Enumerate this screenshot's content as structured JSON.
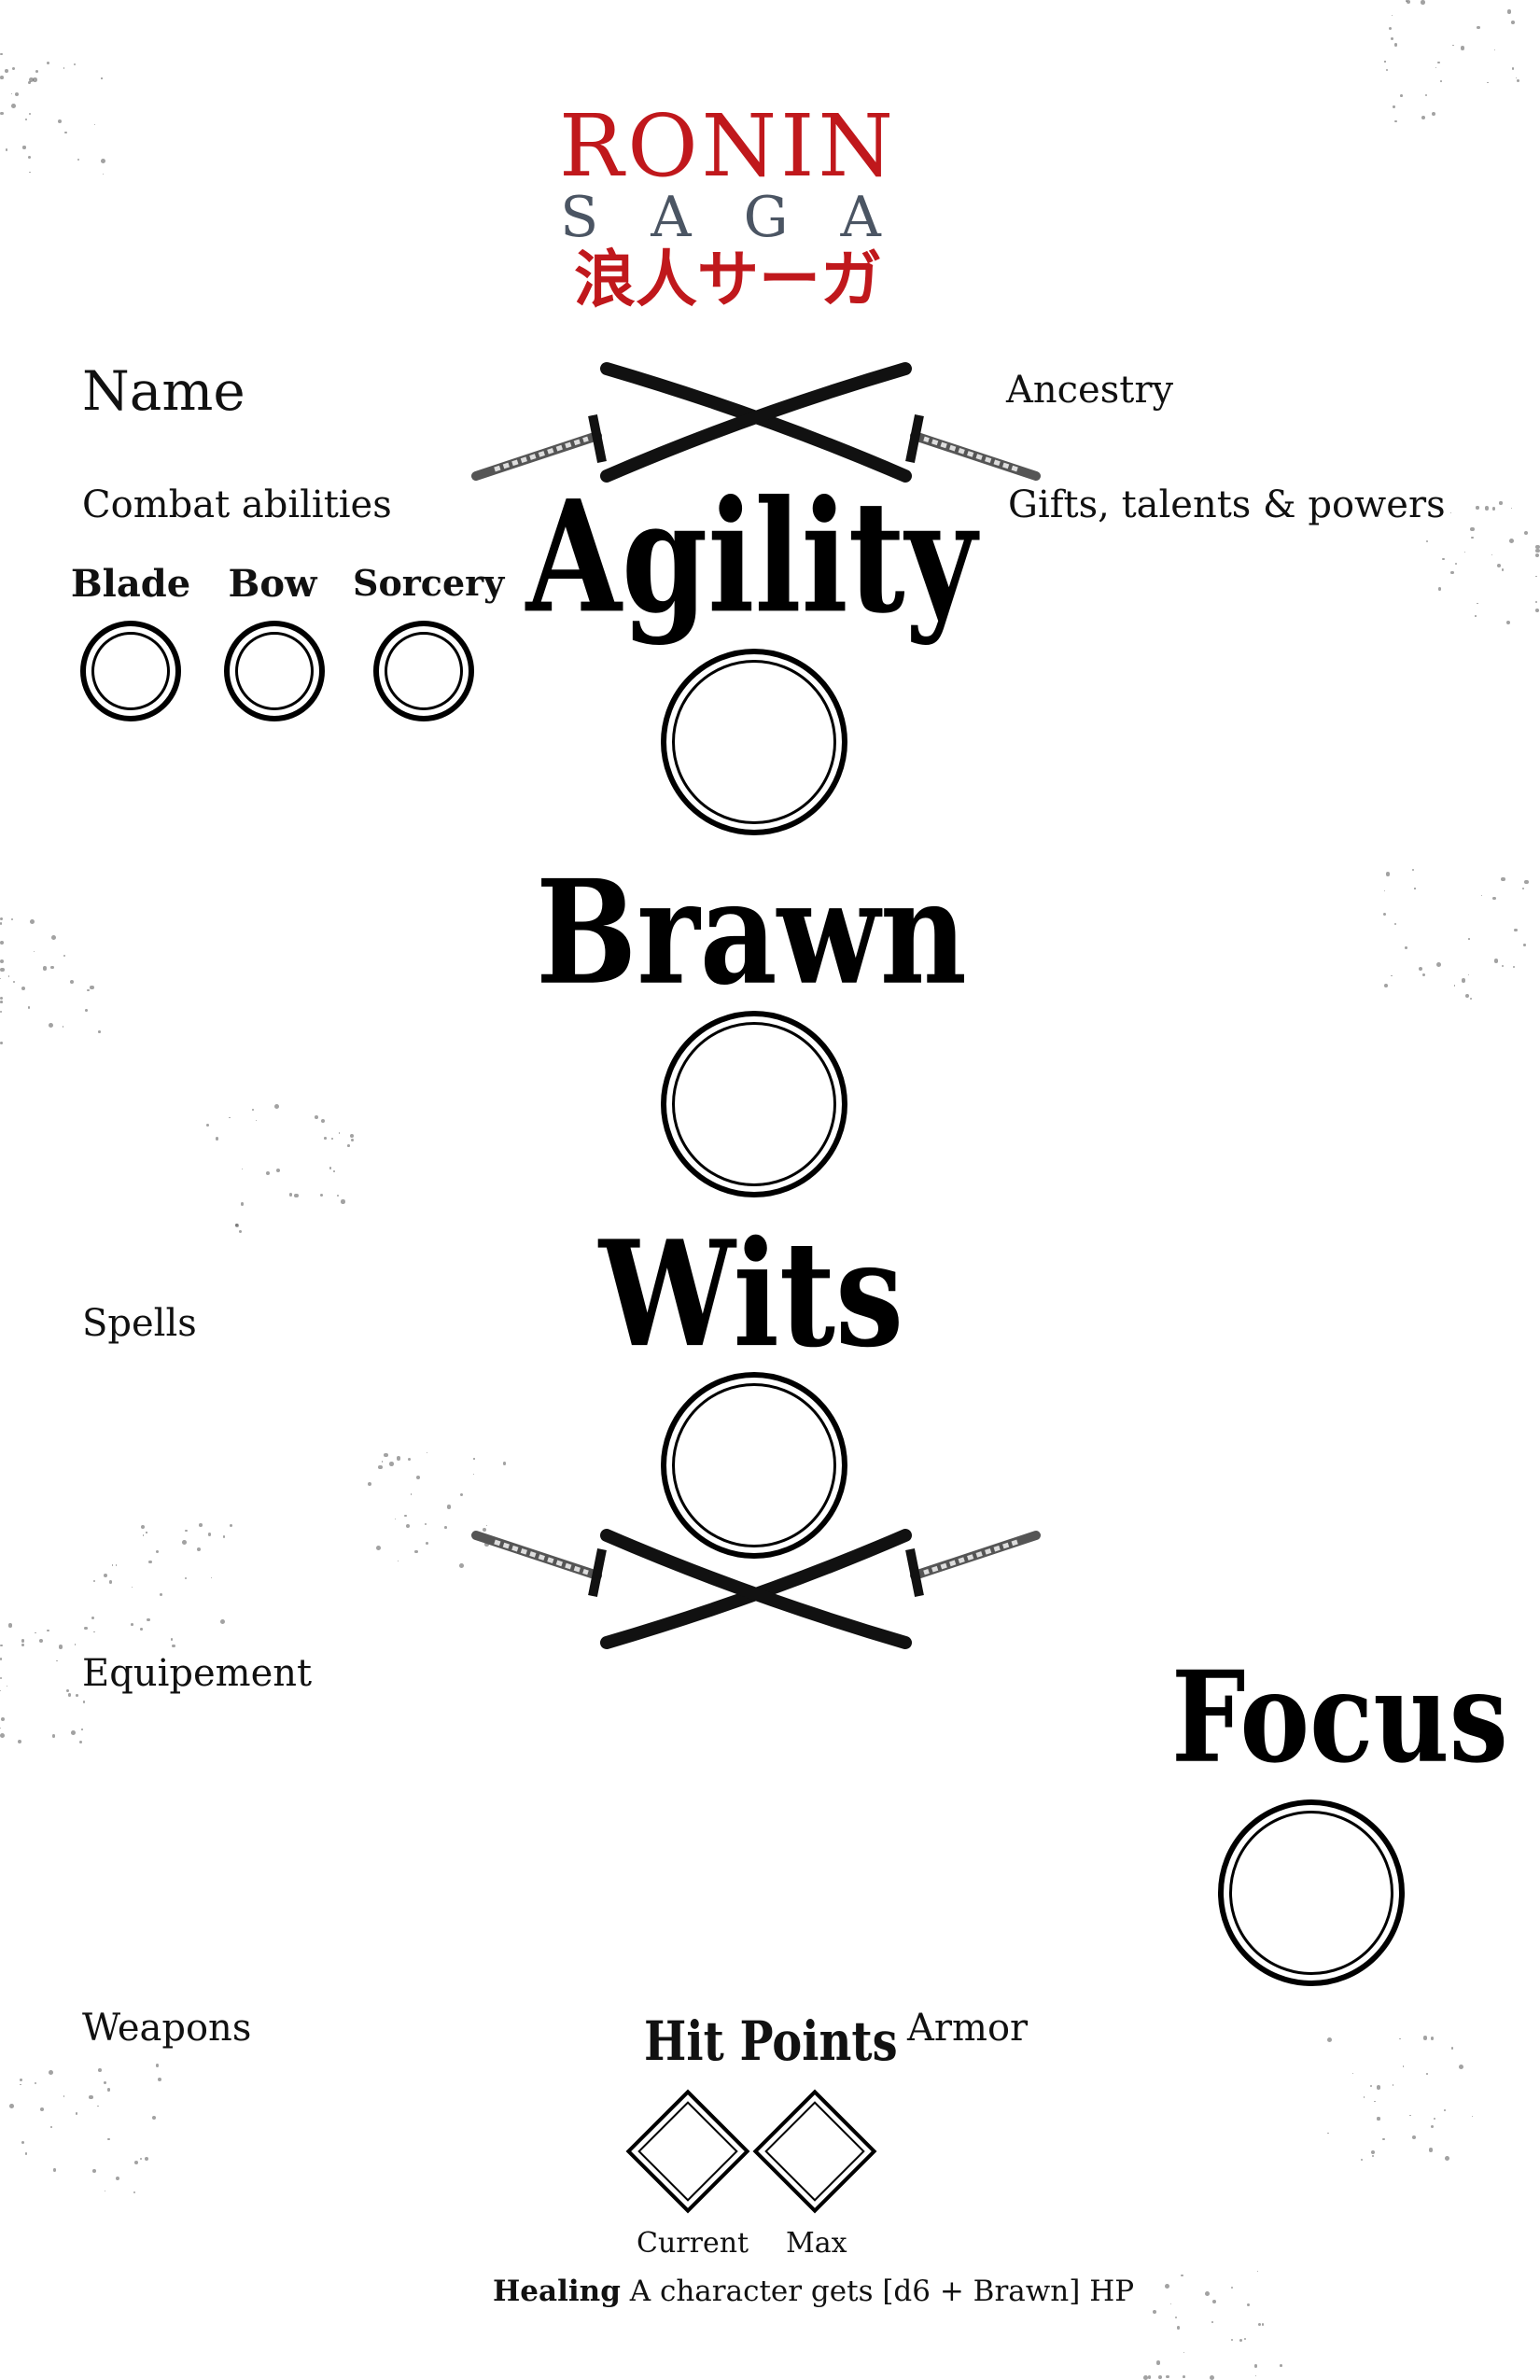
{
  "logo": {
    "title": "RONIN",
    "subtitle": "SAGA",
    "japanese": "浪人サーガ"
  },
  "left_sections": {
    "name": "Name",
    "combat_abilities": "Combat abilities",
    "spells": "Spells",
    "equipment": "Equipement",
    "weapons": "Weapons"
  },
  "right_sections": {
    "ancestry": "Ancestry",
    "gifts": "Gifts, talents & powers",
    "armor": "Armor"
  },
  "combat": {
    "blade": "Blade",
    "bow": "Bow",
    "sorcery": "Sorcery"
  },
  "stats": {
    "agility": "Agility",
    "brawn": "Brawn",
    "wits": "Wits",
    "focus": "Focus"
  },
  "hit_points": {
    "title": "Hit Points",
    "current": "Current",
    "max": "Max"
  },
  "healing": {
    "label": "Healing",
    "text": "A character gets [d6 + Brawn] HP"
  },
  "colors": {
    "logo_red": "#c0181c",
    "logo_slate": "#4b5563",
    "ink": "#000000"
  }
}
